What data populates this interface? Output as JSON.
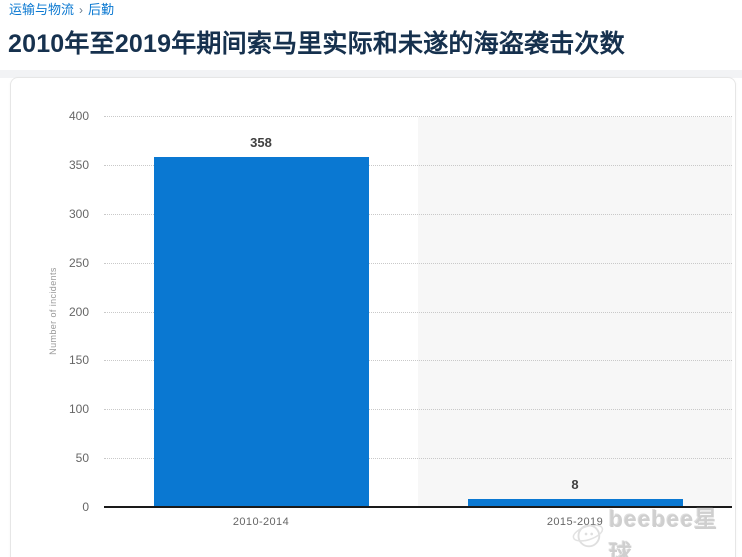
{
  "breadcrumb": {
    "items": [
      {
        "label": "运输与物流"
      },
      {
        "label": "后勤"
      }
    ],
    "separator": "›"
  },
  "page_title": "2010年至2019年期间索马里实际和未遂的海盗袭击次数",
  "watermark": {
    "text": "beebee星球",
    "logo": "planet-doodle-icon"
  },
  "colors": {
    "bar": "#0a78d2",
    "link": "#0a78d1",
    "title": "#16314e",
    "tick_label": "#666666",
    "grid": "#c9c9c9",
    "axis": "#1a1a1a",
    "highlight_band": "#f7f7f7",
    "watermark": "#cfcfcf"
  },
  "chart_data": {
    "type": "bar",
    "categories": [
      "2010-2014",
      "2015-2019"
    ],
    "values": [
      358,
      8
    ],
    "title": "",
    "xlabel": "",
    "ylabel": "Number of incidents",
    "ylim": [
      0,
      400
    ],
    "ytick_step": 50,
    "grid": "horizontal-dotted",
    "legend": "none",
    "bar_color": "#0a78d2",
    "value_labels_shown": true,
    "highlighted_category_index": 1
  }
}
